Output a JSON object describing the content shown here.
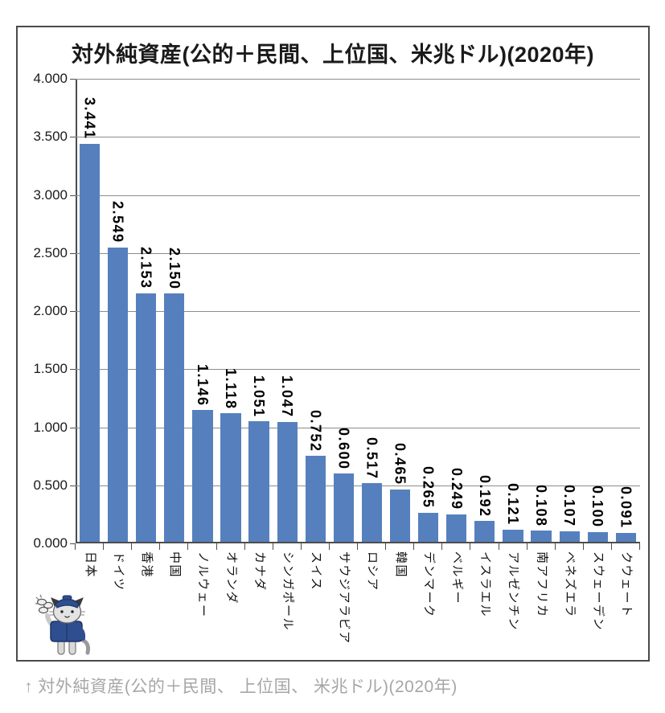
{
  "title": "対外純資産(公的＋民間、上位国、米兆ドル)(2020年)",
  "footer": {
    "caption": "↑ 対外純資産(公的＋民間、 上位国、 米兆ドル)(2020年)"
  },
  "colors": {
    "bar": "#5580bd",
    "gridline": "#8c8c8c",
    "axis": "#4d4d4d",
    "frame_border": "#4a4a4a",
    "caption_text": "#a6a6a6",
    "mascot_navy": "#2f4e8f",
    "mascot_gray": "#d9d9d9"
  },
  "y_axis": {
    "ticks_bottom_to_top": [
      "0.000",
      "0.500",
      "1.000",
      "1.500",
      "2.000",
      "2.500",
      "3.000",
      "3.500",
      "4.000"
    ],
    "min": 0,
    "max": 4,
    "step": 0.5
  },
  "chart_data": {
    "type": "bar",
    "title": "対外純資産(公的＋民間、上位国、米兆ドル)(2020年)",
    "categories": [
      "日本",
      "ドイツ",
      "香港",
      "中国",
      "ノルウェー",
      "オランダ",
      "カナダ",
      "シンガポール",
      "スイス",
      "サウジアラビア",
      "ロシア",
      "韓国",
      "デンマーク",
      "ベルギー",
      "イスラエル",
      "アルゼンチン",
      "南アフリカ",
      "ベネズエラ",
      "スウェーデン",
      "クウェート"
    ],
    "values": [
      3.441,
      2.549,
      2.153,
      2.15,
      1.146,
      1.118,
      1.051,
      1.047,
      0.752,
      0.6,
      0.517,
      0.465,
      0.265,
      0.249,
      0.192,
      0.121,
      0.108,
      0.107,
      0.1,
      0.091
    ],
    "value_labels": [
      "3.441",
      "2.549",
      "2.153",
      "2.150",
      "1.146",
      "1.118",
      "1.051",
      "1.047",
      "0.752",
      "0.600",
      "0.517",
      "0.465",
      "0.265",
      "0.249",
      "0.192",
      "0.121",
      "0.108",
      "0.107",
      "0.100",
      "0.091"
    ],
    "xlabel": "",
    "ylabel": "",
    "ylim": [
      0,
      4
    ],
    "grid": true,
    "legend": false,
    "bar_color": "#5580bd",
    "unit": "米兆ドル",
    "year": "2020年"
  },
  "mascot": {
    "name": "cat-mascot",
    "description": ""
  }
}
